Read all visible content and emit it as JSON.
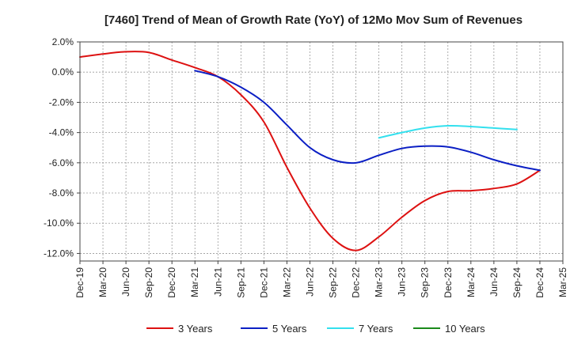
{
  "chart_data": {
    "type": "line",
    "title": "[7460]  Trend of Mean of Growth Rate (YoY) of 12Mo Mov Sum of Revenues",
    "xlabel": "",
    "ylabel": "",
    "ylim": [
      -12.5,
      2.0
    ],
    "y_ticks": [
      2.0,
      0.0,
      -2.0,
      -4.0,
      -6.0,
      -8.0,
      -10.0,
      -12.0
    ],
    "y_tick_labels": [
      "2.0%",
      "0.0%",
      "-2.0%",
      "-4.0%",
      "-6.0%",
      "-8.0%",
      "-10.0%",
      "-12.0%"
    ],
    "x_tick_labels": [
      "Dec-19",
      "Mar-20",
      "Jun-20",
      "Sep-20",
      "Dec-20",
      "Mar-21",
      "Jun-21",
      "Sep-21",
      "Dec-21",
      "Mar-22",
      "Jun-22",
      "Sep-22",
      "Dec-22",
      "Mar-23",
      "Jun-23",
      "Sep-23",
      "Dec-23",
      "Mar-24",
      "Jun-24",
      "Sep-24",
      "Dec-24",
      "Mar-25"
    ],
    "grid": true,
    "legend_position": "bottom",
    "series": [
      {
        "name": "3 Years",
        "color": "#dd1111",
        "start_index": 0,
        "values": [
          1.0,
          1.2,
          1.35,
          1.3,
          0.8,
          0.3,
          -0.3,
          -1.5,
          -3.3,
          -6.3,
          -9.0,
          -11.0,
          -11.8,
          -10.9,
          -9.6,
          -8.5,
          -7.9,
          -7.85,
          -7.7,
          -7.4,
          -6.5
        ]
      },
      {
        "name": "5 Years",
        "color": "#0b1fc4",
        "start_index": 5,
        "values": [
          0.1,
          -0.3,
          -1.0,
          -2.0,
          -3.5,
          -5.0,
          -5.8,
          -6.0,
          -5.5,
          -5.05,
          -4.9,
          -4.95,
          -5.3,
          -5.8,
          -6.2,
          -6.5
        ]
      },
      {
        "name": "7 Years",
        "color": "#33e0ee",
        "start_index": 13,
        "values": [
          -4.35,
          -4.0,
          -3.7,
          -3.55,
          -3.6,
          -3.7,
          -3.8
        ]
      },
      {
        "name": "10 Years",
        "color": "#1a8a1a",
        "start_index": 0,
        "values": []
      }
    ]
  }
}
